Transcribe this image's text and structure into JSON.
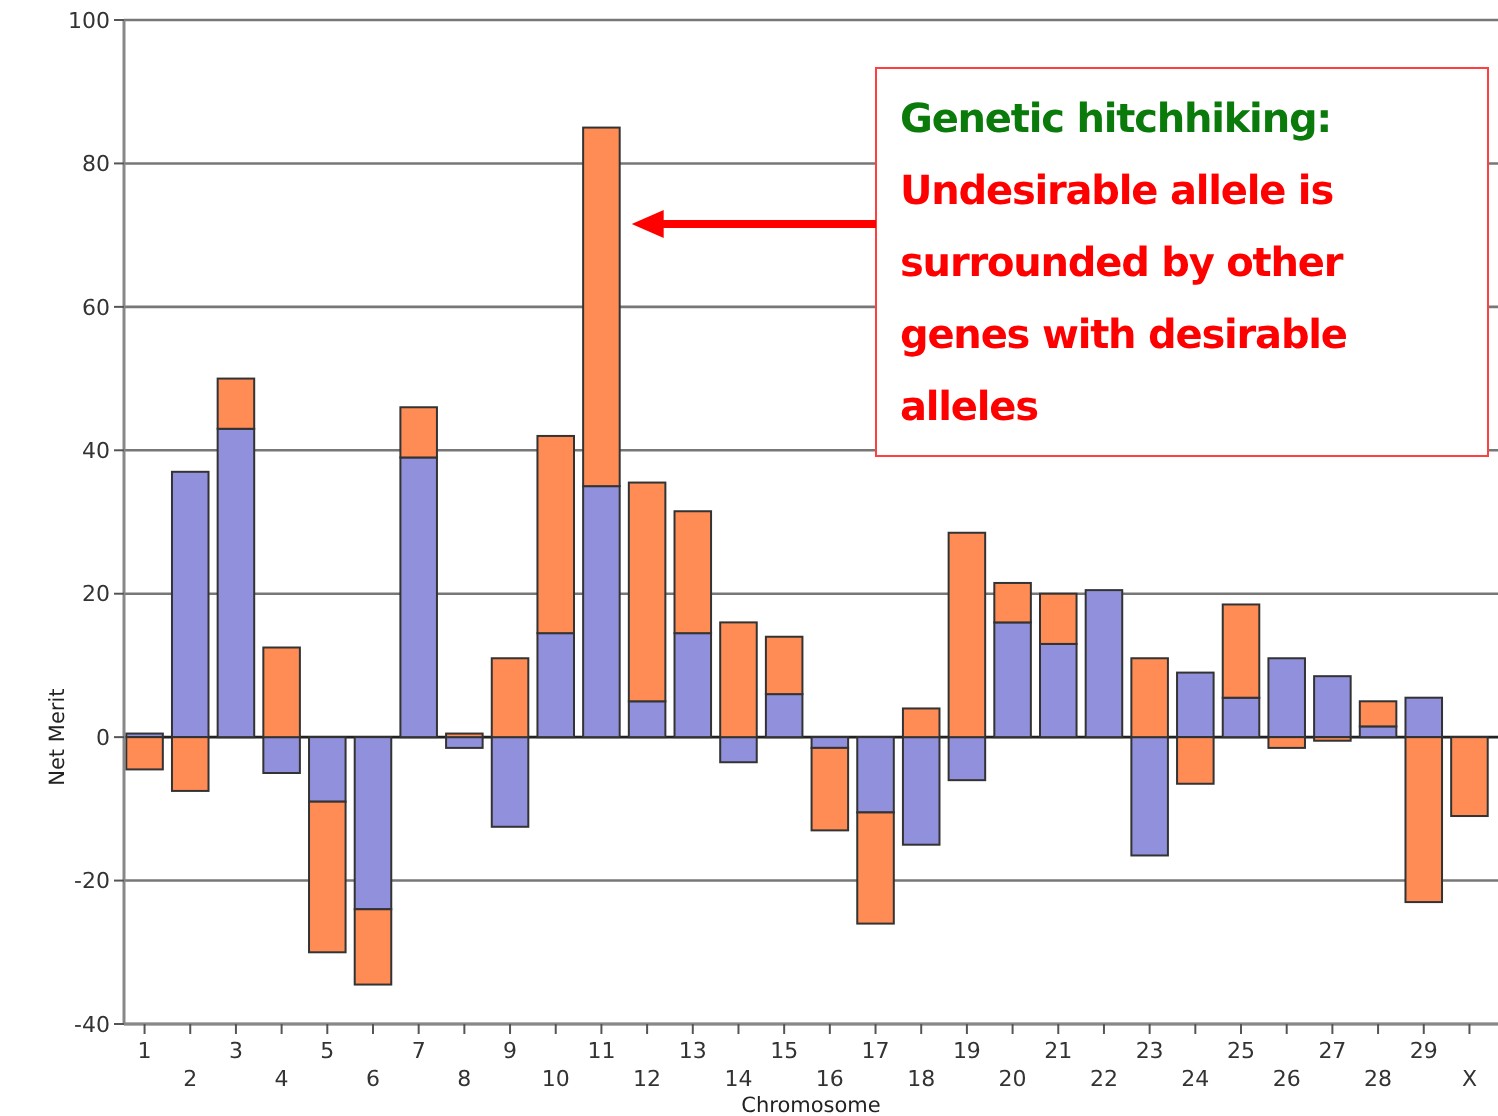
{
  "chart_data": {
    "type": "bar",
    "stacked": true,
    "xlabel": "Chromosome",
    "ylabel": "Net Merit",
    "categories": [
      "1",
      "2",
      "3",
      "4",
      "5",
      "6",
      "7",
      "8",
      "9",
      "10",
      "11",
      "12",
      "13",
      "14",
      "15",
      "16",
      "17",
      "18",
      "19",
      "20",
      "21",
      "22",
      "23",
      "24",
      "25",
      "26",
      "27",
      "28",
      "29",
      "X"
    ],
    "series": [
      {
        "color": "#9090dc",
        "values": [
          0.5,
          37,
          43,
          -5,
          -9,
          -24,
          39,
          -1.5,
          -12.5,
          14.5,
          35,
          5,
          14.5,
          -3.5,
          6,
          -1.5,
          -10.5,
          -15,
          -6,
          16,
          13,
          20.5,
          -16.5,
          9,
          5.5,
          11,
          8.5,
          1.5,
          5.5,
          0
        ]
      },
      {
        "color": "#ff8c55",
        "values": [
          -4.5,
          -7.5,
          7,
          12.5,
          -21,
          -10.5,
          7,
          0.5,
          11,
          27.5,
          50,
          30.5,
          17,
          16,
          8,
          -11.5,
          -15.5,
          4,
          28.5,
          5.5,
          7,
          0,
          11,
          -6.5,
          13,
          -1.5,
          -0.5,
          3.5,
          -23,
          -11
        ]
      }
    ],
    "ylim": [
      -40,
      100
    ],
    "yticks": [
      -40,
      -20,
      0,
      20,
      40,
      60,
      80,
      100
    ],
    "grid": "y",
    "annotations": [
      "Genetic hitchhiking:",
      "Undesirable allele is surrounded by other genes with desirable alleles"
    ]
  }
}
